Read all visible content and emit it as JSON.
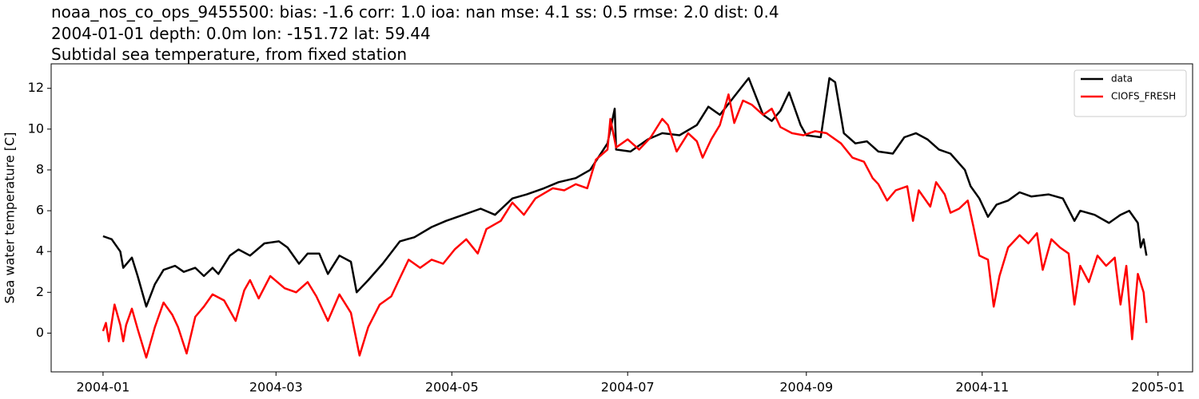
{
  "chart_data": {
    "type": "line",
    "title": [
      "noaa_nos_co_ops_9455500: bias: -1.6  corr: 1.0  ioa: nan  mse: 4.1  ss: 0.5  rmse: 2.0  dist: 0.4",
      "2004-01-01 depth: 0.0m lon: -151.72 lat: 59.44",
      "Subtidal sea temperature, from fixed station"
    ],
    "ylabel": "Sea water temperature [C]",
    "xlim": [
      -18,
      378
    ],
    "ylim": [
      -1.9,
      13.2
    ],
    "xticks": [
      {
        "value": 0,
        "label": "2004-01"
      },
      {
        "value": 60,
        "label": "2004-03"
      },
      {
        "value": 121,
        "label": "2004-05"
      },
      {
        "value": 182,
        "label": "2004-07"
      },
      {
        "value": 244,
        "label": "2004-09"
      },
      {
        "value": 305,
        "label": "2004-11"
      },
      {
        "value": 366,
        "label": "2005-01"
      }
    ],
    "yticks": [
      0,
      2,
      4,
      6,
      8,
      10,
      12
    ],
    "grid": false,
    "legend": "upper right",
    "series": [
      {
        "name": "data",
        "color": "#000000",
        "x": [
          0,
          3,
          6,
          7,
          10,
          12,
          15,
          18,
          21,
          25,
          28,
          32,
          35,
          38,
          40,
          44,
          47,
          51,
          56,
          61,
          64,
          68,
          71,
          75,
          78,
          82,
          86,
          88,
          92,
          97,
          103,
          108,
          114,
          119,
          125,
          131,
          136,
          142,
          147,
          153,
          158,
          164,
          169,
          175,
          177.5,
          178,
          183,
          189,
          194,
          200,
          206,
          210,
          214,
          219,
          224,
          229,
          232,
          235,
          238,
          242,
          244,
          249,
          252,
          254,
          257,
          261,
          265,
          269,
          274,
          278,
          282,
          286,
          290,
          294,
          299,
          301,
          304,
          307,
          310,
          314,
          318,
          322,
          328,
          333,
          337,
          339,
          344,
          349,
          353,
          356,
          359,
          360,
          361,
          362
        ],
        "values": [
          4.75,
          4.6,
          4.0,
          3.2,
          3.7,
          2.8,
          1.3,
          2.4,
          3.1,
          3.3,
          3.0,
          3.2,
          2.8,
          3.2,
          2.9,
          3.8,
          4.1,
          3.8,
          4.4,
          4.5,
          4.2,
          3.4,
          3.9,
          3.9,
          2.9,
          3.8,
          3.5,
          2.0,
          2.6,
          3.4,
          4.5,
          4.7,
          5.2,
          5.5,
          5.8,
          6.1,
          5.8,
          6.6,
          6.8,
          7.1,
          7.4,
          7.6,
          8.0,
          9.3,
          11.0,
          9.0,
          8.9,
          9.5,
          9.8,
          9.7,
          10.2,
          11.1,
          10.7,
          11.6,
          12.5,
          10.7,
          10.4,
          10.9,
          11.8,
          10.2,
          9.7,
          9.6,
          12.5,
          12.3,
          9.8,
          9.3,
          9.4,
          8.9,
          8.8,
          9.6,
          9.8,
          9.5,
          9.0,
          8.8,
          8.0,
          7.2,
          6.6,
          5.7,
          6.3,
          6.5,
          6.9,
          6.7,
          6.8,
          6.6,
          5.5,
          6.0,
          5.8,
          5.4,
          5.8,
          6.0,
          5.4,
          4.2,
          4.6,
          3.8
        ]
      },
      {
        "name": "CIOFS_FRESH",
        "color": "#ff0000",
        "x": [
          0,
          1,
          2,
          4,
          6,
          7,
          8,
          10,
          12,
          15,
          18,
          21,
          24,
          26,
          29,
          32,
          35,
          38,
          42,
          46,
          49,
          51,
          54,
          58,
          63,
          67,
          71,
          74,
          78,
          82,
          86,
          89,
          92,
          96,
          100,
          103,
          106,
          110,
          114,
          118,
          122,
          126,
          130,
          133,
          138,
          142,
          146,
          150,
          156,
          160,
          164,
          168,
          171,
          175,
          176,
          178,
          182,
          186,
          190,
          194,
          196,
          199,
          203,
          206,
          208,
          211,
          214,
          217,
          219,
          222,
          225,
          229,
          232,
          235,
          239,
          243,
          247,
          251,
          256,
          260,
          264,
          267,
          269,
          272,
          275,
          279,
          281,
          283,
          287,
          289,
          292,
          294,
          297,
          300,
          302,
          304,
          307,
          309,
          311,
          314,
          318,
          321,
          324,
          326,
          329,
          332,
          335,
          337,
          339,
          342,
          345,
          348,
          351,
          353,
          355,
          357,
          359,
          361,
          362
        ],
        "values": [
          0.1,
          0.5,
          -0.4,
          1.4,
          0.4,
          -0.4,
          0.4,
          1.2,
          0.2,
          -1.2,
          0.3,
          1.5,
          0.9,
          0.3,
          -1.0,
          0.8,
          1.3,
          1.9,
          1.6,
          0.6,
          2.1,
          2.6,
          1.7,
          2.8,
          2.2,
          2.0,
          2.5,
          1.8,
          0.6,
          1.9,
          1.0,
          -1.1,
          0.3,
          1.4,
          1.8,
          2.7,
          3.6,
          3.2,
          3.6,
          3.4,
          4.1,
          4.6,
          3.9,
          5.1,
          5.5,
          6.4,
          5.8,
          6.6,
          7.1,
          7.0,
          7.3,
          7.1,
          8.5,
          9.0,
          10.5,
          9.1,
          9.5,
          9.0,
          9.6,
          10.5,
          10.2,
          8.9,
          9.8,
          9.4,
          8.6,
          9.5,
          10.2,
          11.7,
          10.3,
          11.4,
          11.2,
          10.7,
          11.0,
          10.1,
          9.8,
          9.7,
          9.9,
          9.8,
          9.3,
          8.6,
          8.4,
          7.6,
          7.3,
          6.5,
          7.0,
          7.2,
          5.5,
          7.0,
          6.2,
          7.4,
          6.8,
          5.9,
          6.1,
          6.5,
          5.2,
          3.8,
          3.6,
          1.3,
          2.8,
          4.2,
          4.8,
          4.4,
          4.9,
          3.1,
          4.6,
          4.2,
          3.9,
          1.4,
          3.3,
          2.5,
          3.8,
          3.3,
          3.7,
          1.4,
          3.3,
          -0.3,
          2.9,
          2.0,
          0.5
        ]
      }
    ]
  }
}
